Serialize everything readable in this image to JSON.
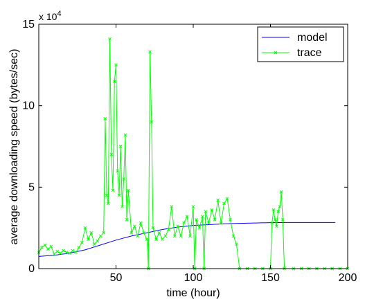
{
  "chart_data": {
    "type": "line",
    "xlabel": "time (hour)",
    "ylabel": "average downloading speed (bytes/sec)",
    "xlim": [
      0,
      200
    ],
    "ylim": [
      0,
      150000
    ],
    "x_ticks": [
      50,
      100,
      150,
      200
    ],
    "x_tick_labels": [
      "50",
      "100",
      "150",
      "200"
    ],
    "y_ticks": [
      0,
      50000,
      100000,
      150000
    ],
    "y_tick_labels": [
      "0",
      "5",
      "10",
      "15"
    ],
    "y_multiplier": {
      "base": "x 10",
      "exponent": "4"
    },
    "grid": false,
    "legend": {
      "position": "top-right",
      "entries": [
        {
          "label": "model",
          "series": "model"
        },
        {
          "label": "trace",
          "series": "trace"
        }
      ]
    },
    "series": [
      {
        "name": "model",
        "color": "#0000ff",
        "marker": "none",
        "points": [
          [
            0,
            7500
          ],
          [
            10,
            8200
          ],
          [
            20,
            9500
          ],
          [
            30,
            11500
          ],
          [
            40,
            14500
          ],
          [
            50,
            17500
          ],
          [
            60,
            20000
          ],
          [
            70,
            22000
          ],
          [
            80,
            24000
          ],
          [
            90,
            25500
          ],
          [
            100,
            26500
          ],
          [
            110,
            27000
          ],
          [
            120,
            27500
          ],
          [
            130,
            27800
          ],
          [
            140,
            28000
          ],
          [
            150,
            28200
          ],
          [
            160,
            28300
          ],
          [
            170,
            28300
          ],
          [
            180,
            28300
          ],
          [
            190,
            28300
          ],
          [
            192,
            28300
          ]
        ]
      },
      {
        "name": "trace",
        "color": "#00ff00",
        "marker": "x",
        "points": [
          [
            0,
            10000
          ],
          [
            2,
            13000
          ],
          [
            4,
            14500
          ],
          [
            6,
            12000
          ],
          [
            8,
            13500
          ],
          [
            10,
            9000
          ],
          [
            12,
            10500
          ],
          [
            14,
            9500
          ],
          [
            16,
            11000
          ],
          [
            18,
            10000
          ],
          [
            20,
            9500
          ],
          [
            22,
            11000
          ],
          [
            24,
            10000
          ],
          [
            26,
            13000
          ],
          [
            28,
            16000
          ],
          [
            30,
            25000
          ],
          [
            32,
            18000
          ],
          [
            34,
            22000
          ],
          [
            36,
            15000
          ],
          [
            38,
            17000
          ],
          [
            40,
            20000
          ],
          [
            42,
            22000
          ],
          [
            43,
            92000
          ],
          [
            44,
            45000
          ],
          [
            45,
            40000
          ],
          [
            46,
            141000
          ],
          [
            47,
            70000
          ],
          [
            48,
            48000
          ],
          [
            49,
            115000
          ],
          [
            50,
            125000
          ],
          [
            51,
            60000
          ],
          [
            52,
            45000
          ],
          [
            53,
            75000
          ],
          [
            54,
            38000
          ],
          [
            55,
            55000
          ],
          [
            56,
            82000
          ],
          [
            57,
            30000
          ],
          [
            58,
            48000
          ],
          [
            60,
            22000
          ],
          [
            62,
            26000
          ],
          [
            64,
            20000
          ],
          [
            66,
            28000
          ],
          [
            68,
            22000
          ],
          [
            70,
            18000
          ],
          [
            71,
            0
          ],
          [
            72,
            133000
          ],
          [
            73,
            90000
          ],
          [
            74,
            25000
          ],
          [
            76,
            18000
          ],
          [
            78,
            22000
          ],
          [
            80,
            18000
          ],
          [
            82,
            20000
          ],
          [
            84,
            24000
          ],
          [
            86,
            38000
          ],
          [
            88,
            20000
          ],
          [
            90,
            26000
          ],
          [
            92,
            20000
          ],
          [
            94,
            28000
          ],
          [
            96,
            32000
          ],
          [
            98,
            20000
          ],
          [
            100,
            38000
          ],
          [
            101,
            0
          ],
          [
            102,
            30000
          ],
          [
            104,
            25000
          ],
          [
            106,
            32000
          ],
          [
            107,
            0
          ],
          [
            108,
            35000
          ],
          [
            110,
            28000
          ],
          [
            112,
            36000
          ],
          [
            114,
            30000
          ],
          [
            116,
            42000
          ],
          [
            118,
            28000
          ],
          [
            120,
            40000
          ],
          [
            122,
            43000
          ],
          [
            124,
            30000
          ],
          [
            126,
            20000
          ],
          [
            128,
            15000
          ],
          [
            130,
            0
          ],
          [
            135,
            0
          ],
          [
            140,
            0
          ],
          [
            145,
            0
          ],
          [
            150,
            0
          ],
          [
            151,
            28000
          ],
          [
            152,
            36000
          ],
          [
            153,
            30000
          ],
          [
            154,
            26000
          ],
          [
            155,
            35000
          ],
          [
            156,
            38000
          ],
          [
            157,
            47000
          ],
          [
            158,
            30000
          ],
          [
            159,
            0
          ],
          [
            165,
            0
          ],
          [
            170,
            0
          ],
          [
            175,
            0
          ],
          [
            180,
            0
          ],
          [
            185,
            0
          ],
          [
            190,
            0
          ],
          [
            195,
            0
          ],
          [
            200,
            0
          ]
        ]
      }
    ]
  }
}
